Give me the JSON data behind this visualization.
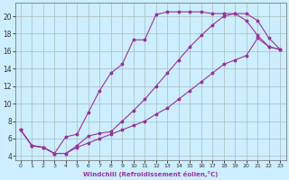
{
  "xlabel": "Windchill (Refroidissement éolien,°C)",
  "bg_color": "#cceeff",
  "line_color": "#993399",
  "grid_color": "#aabbbb",
  "xlim": [
    -0.5,
    23.5
  ],
  "ylim": [
    3.5,
    21.5
  ],
  "xticks": [
    0,
    1,
    2,
    3,
    4,
    5,
    6,
    7,
    8,
    9,
    10,
    11,
    12,
    13,
    14,
    15,
    16,
    17,
    18,
    19,
    20,
    21,
    22,
    23
  ],
  "yticks": [
    4,
    6,
    8,
    10,
    12,
    14,
    16,
    18,
    20
  ],
  "curve1_x": [
    0,
    1,
    2,
    3,
    4,
    5,
    6,
    7,
    8,
    9,
    10,
    11,
    12,
    13,
    14,
    15,
    16,
    17,
    18,
    19,
    20,
    21,
    22,
    23
  ],
  "curve1_y": [
    7.0,
    5.2,
    5.0,
    4.3,
    6.2,
    6.5,
    9.0,
    11.5,
    13.5,
    14.5,
    17.3,
    17.3,
    20.2,
    20.5,
    20.5,
    20.5,
    20.5,
    20.3,
    20.3,
    20.3,
    19.5,
    17.8,
    16.5,
    16.2
  ],
  "curve2_x": [
    0,
    1,
    2,
    3,
    4,
    5,
    6,
    7,
    8,
    9,
    10,
    11,
    12,
    13,
    14,
    15,
    16,
    17,
    18,
    19,
    20,
    21,
    22,
    23
  ],
  "curve2_y": [
    7.0,
    5.2,
    5.0,
    4.3,
    4.3,
    5.2,
    6.3,
    6.6,
    6.8,
    8.0,
    9.2,
    10.5,
    12.0,
    13.5,
    15.0,
    16.5,
    17.8,
    19.0,
    20.0,
    20.3,
    20.3,
    19.5,
    17.5,
    16.2
  ],
  "curve3_x": [
    0,
    1,
    2,
    3,
    4,
    5,
    6,
    7,
    8,
    9,
    10,
    11,
    12,
    13,
    14,
    15,
    16,
    17,
    18,
    19,
    20,
    21,
    22,
    23
  ],
  "curve3_y": [
    7.0,
    5.2,
    5.0,
    4.3,
    4.3,
    5.0,
    5.5,
    6.0,
    6.5,
    7.0,
    7.5,
    8.0,
    8.8,
    9.5,
    10.5,
    11.5,
    12.5,
    13.5,
    14.5,
    15.0,
    15.5,
    17.5,
    16.5,
    16.2
  ]
}
